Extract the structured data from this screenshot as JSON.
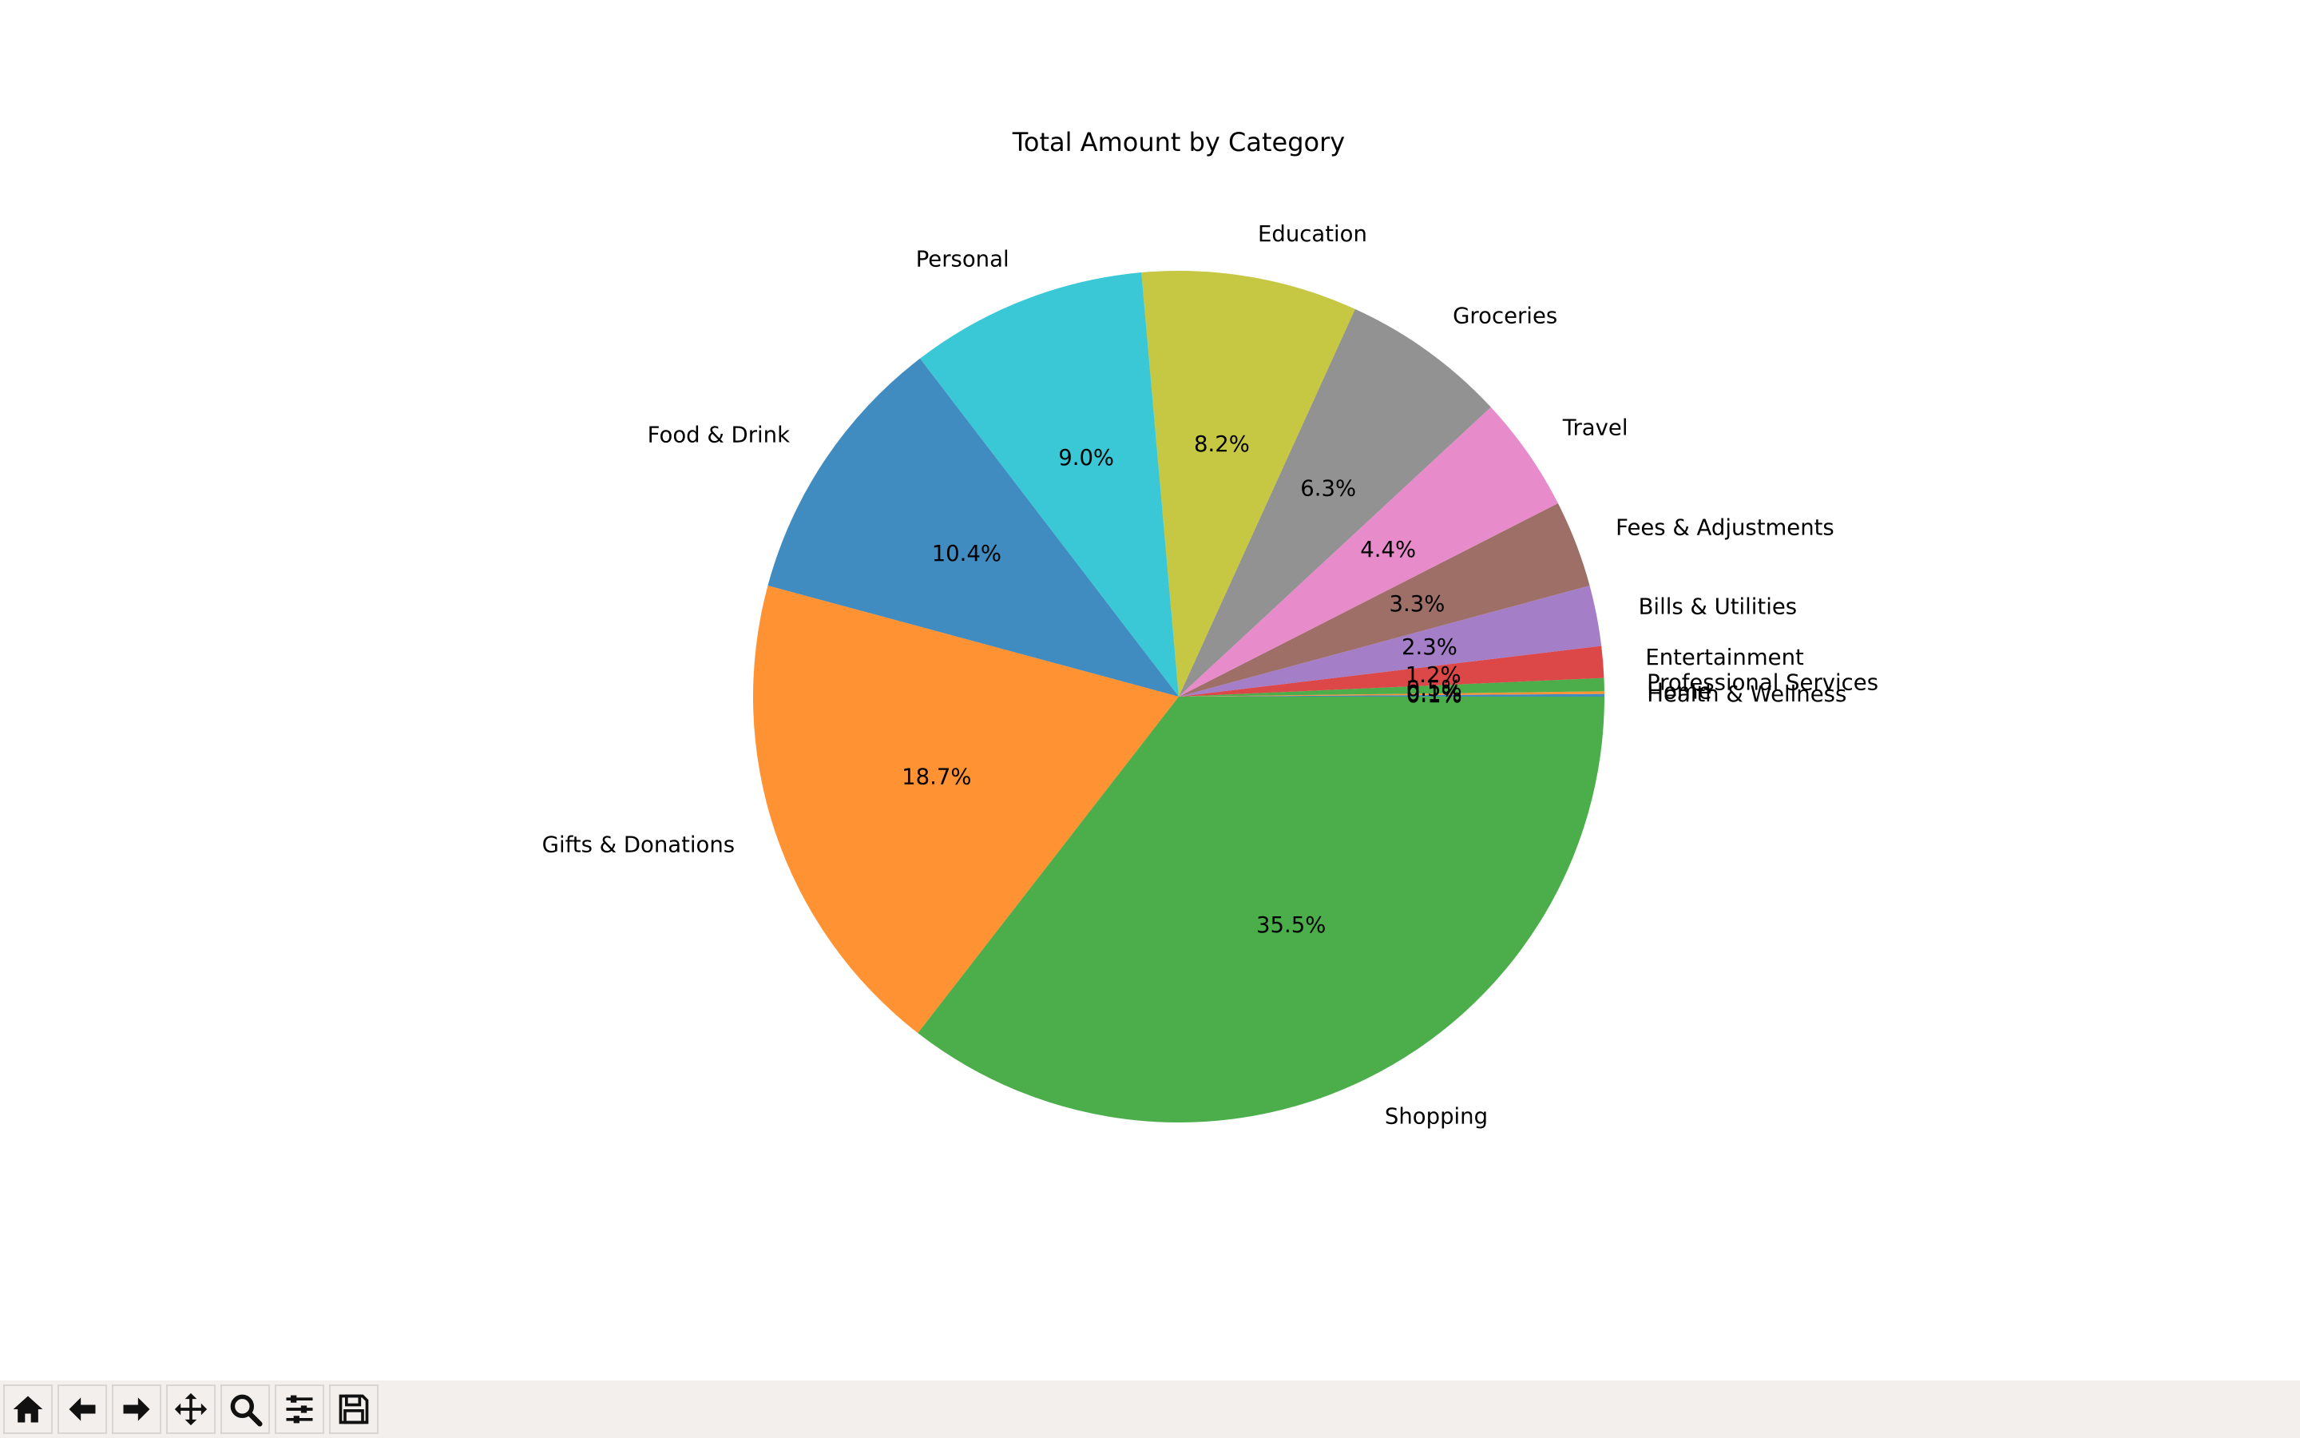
{
  "chart_data": {
    "type": "pie",
    "title": "Total Amount by Category",
    "start_angle_deg": 0,
    "direction": "counterclockwise",
    "slices": [
      {
        "label": "Health & Wellness",
        "value": 0.1,
        "pct_text": "0.1%",
        "color": "#1f77b4"
      },
      {
        "label": "Home",
        "value": 0.1,
        "pct_text": "0.1%",
        "color": "#ff7f0e"
      },
      {
        "label": "Professional Services",
        "value": 0.5,
        "pct_text": "0.5%",
        "color": "#2ca02c"
      },
      {
        "label": "Entertainment",
        "value": 1.2,
        "pct_text": "1.2%",
        "color": "#d62728"
      },
      {
        "label": "Bills & Utilities",
        "value": 2.3,
        "pct_text": "2.3%",
        "color": "#9467bd"
      },
      {
        "label": "Fees & Adjustments",
        "value": 3.3,
        "pct_text": "3.3%",
        "color": "#8c564b"
      },
      {
        "label": "Travel",
        "value": 4.4,
        "pct_text": "4.4%",
        "color": "#e377c2"
      },
      {
        "label": "Groceries",
        "value": 6.3,
        "pct_text": "6.3%",
        "color": "#7f7f7f"
      },
      {
        "label": "Education",
        "value": 8.2,
        "pct_text": "8.2%",
        "color": "#bcbd22"
      },
      {
        "label": "Personal",
        "value": 9.0,
        "pct_text": "9.0%",
        "color": "#17becf"
      },
      {
        "label": "Food & Drink",
        "value": 10.4,
        "pct_text": "10.4%",
        "color": "#1f77b4"
      },
      {
        "label": "Gifts & Donations",
        "value": 18.7,
        "pct_text": "18.7%",
        "color": "#ff7f0e"
      },
      {
        "label": "Shopping",
        "value": 35.5,
        "pct_text": "35.5%",
        "color": "#2ca02c"
      }
    ],
    "slice_alpha": 0.85
  },
  "toolbar": {
    "buttons": [
      {
        "name": "home-button",
        "icon": "home-icon"
      },
      {
        "name": "back-button",
        "icon": "arrow-left-icon"
      },
      {
        "name": "forward-button",
        "icon": "arrow-right-icon"
      },
      {
        "name": "pan-button",
        "icon": "move-icon"
      },
      {
        "name": "zoom-button",
        "icon": "magnifier-icon"
      },
      {
        "name": "configure-subplots-button",
        "icon": "sliders-icon"
      },
      {
        "name": "save-button",
        "icon": "floppy-disk-icon"
      }
    ]
  }
}
